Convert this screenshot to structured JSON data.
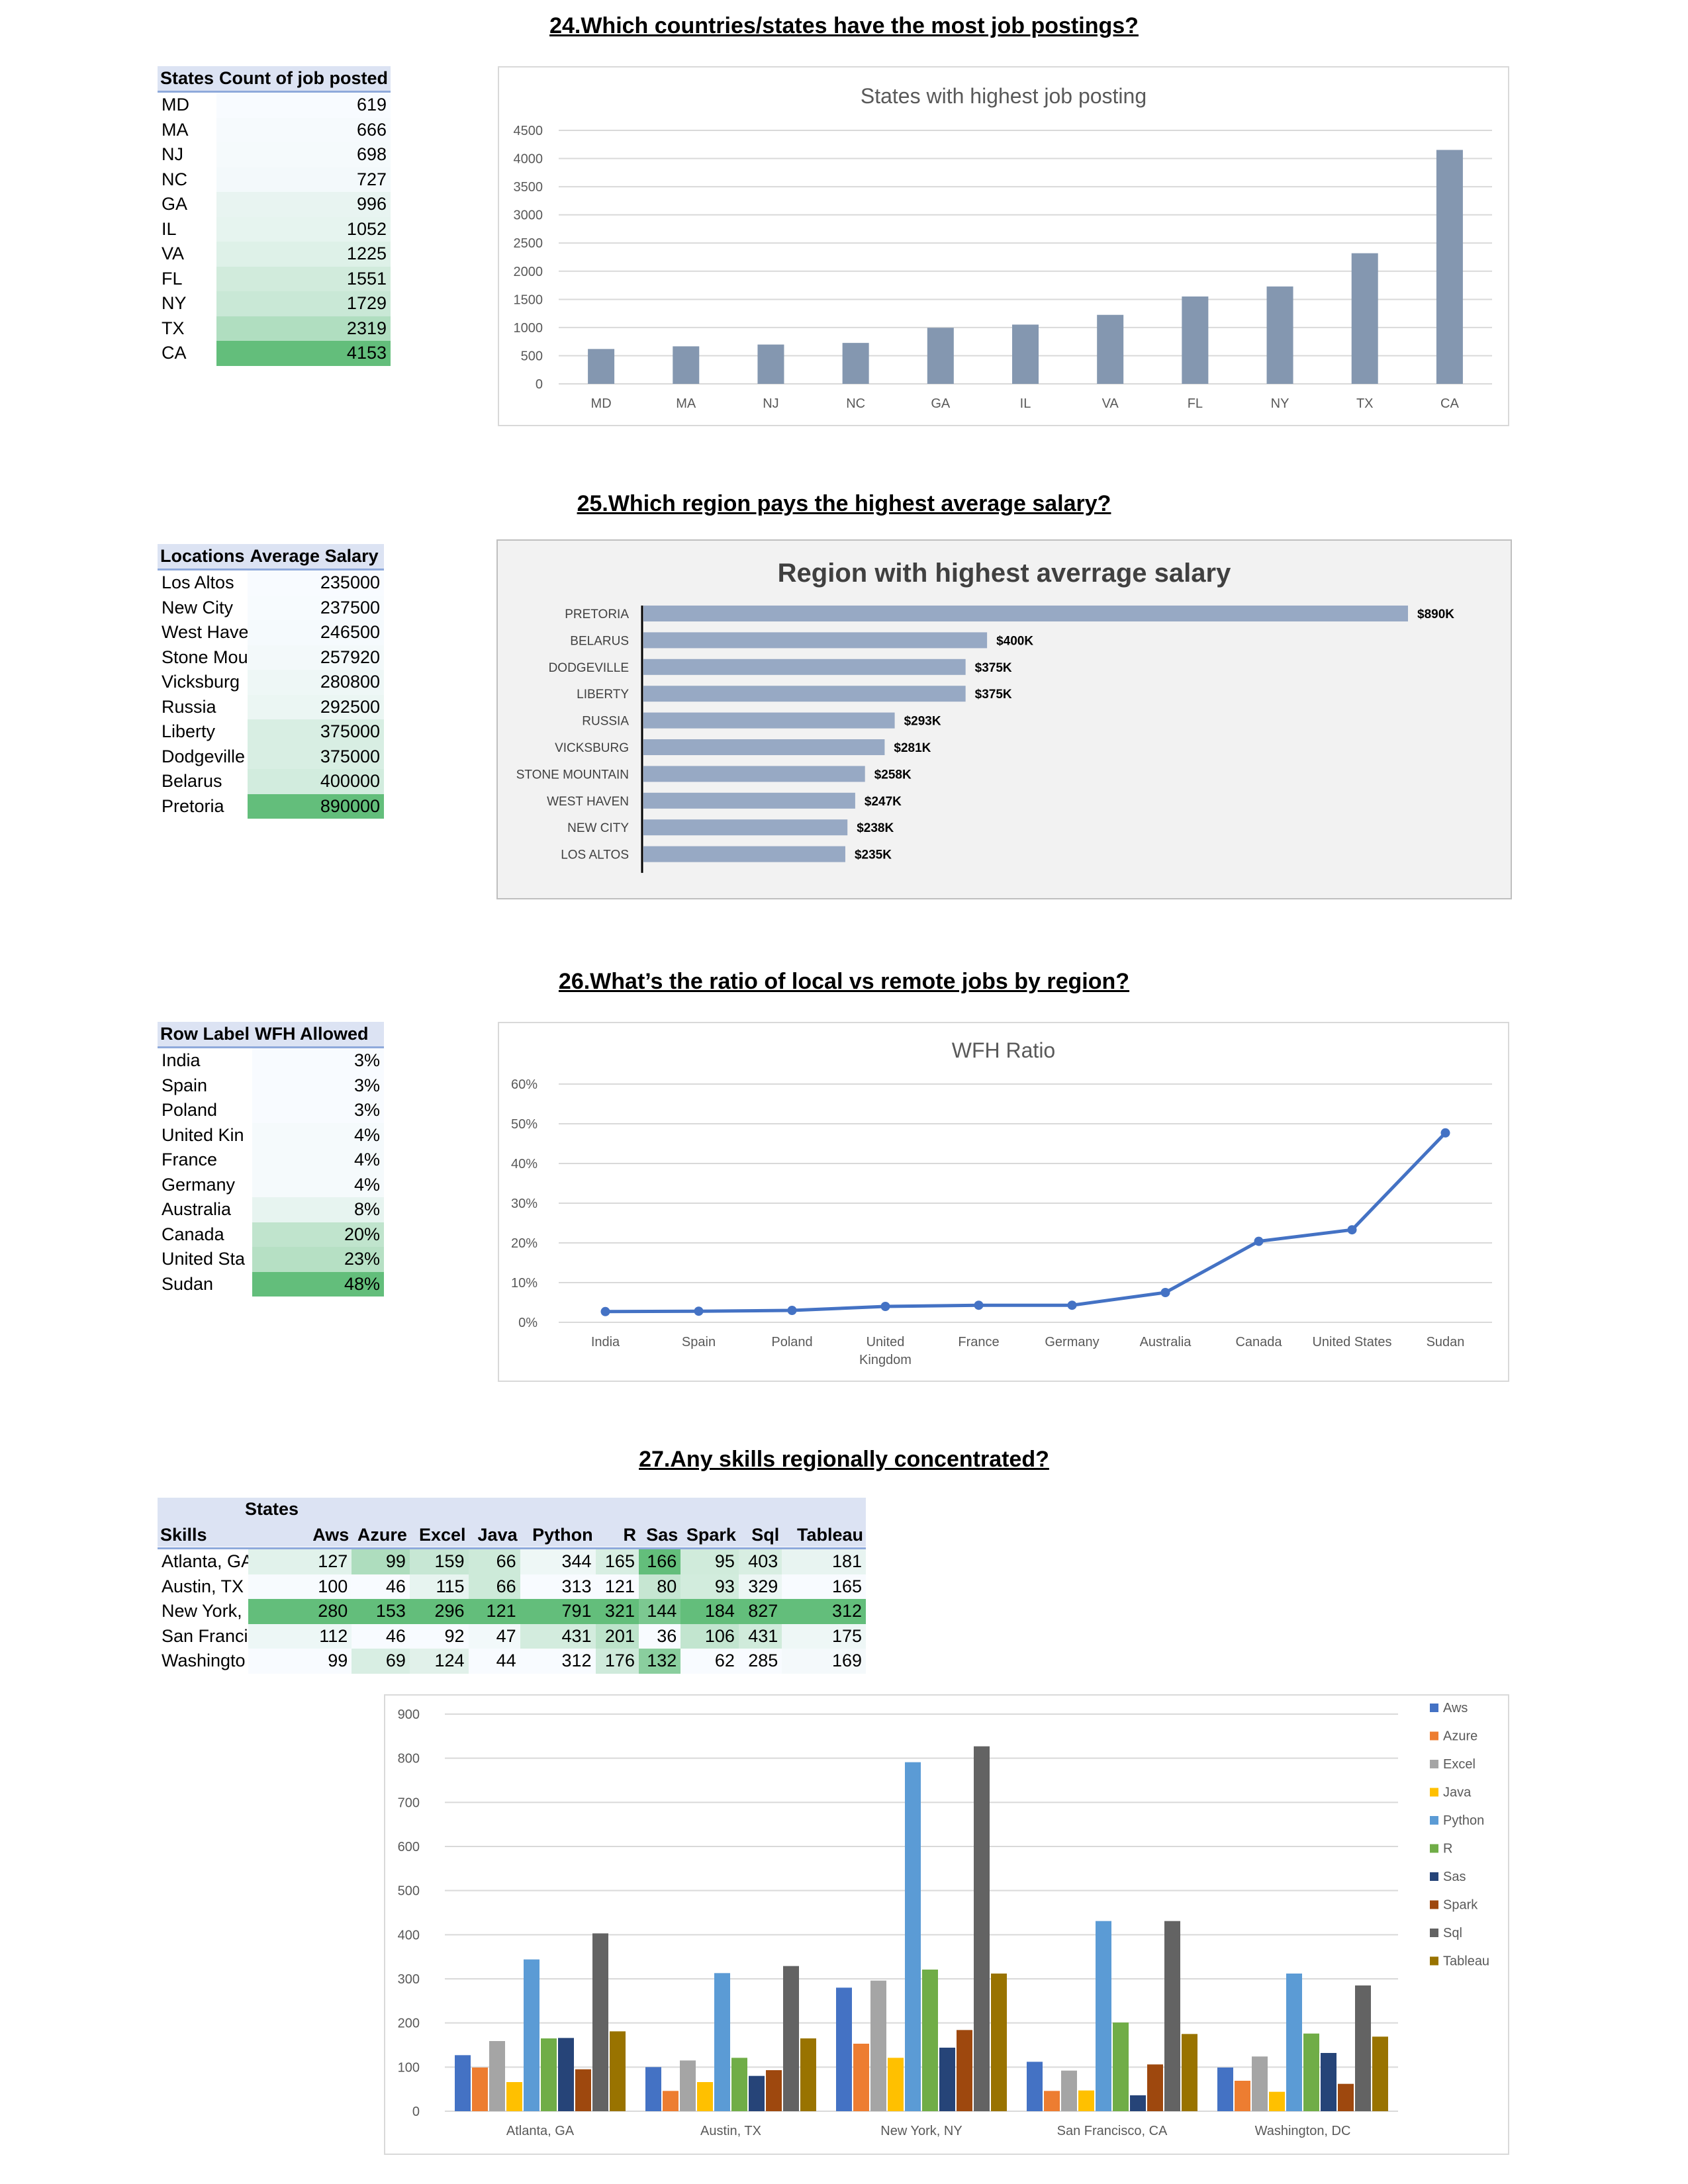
{
  "q24": {
    "title": "24.Which countries/states have the most job postings?",
    "table": {
      "headers": [
        "States",
        "Count of job posted"
      ],
      "rows": [
        [
          "MD",
          "619"
        ],
        [
          "MA",
          "666"
        ],
        [
          "NJ",
          "698"
        ],
        [
          "NC",
          "727"
        ],
        [
          "GA",
          "996"
        ],
        [
          "IL",
          "1052"
        ],
        [
          "VA",
          "1225"
        ],
        [
          "FL",
          "1551"
        ],
        [
          "NY",
          "1729"
        ],
        [
          "TX",
          "2319"
        ],
        [
          "CA",
          "4153"
        ]
      ]
    }
  },
  "q25": {
    "title": "25.Which region pays the highest average salary?",
    "table": {
      "headers": [
        "Locations",
        "Average Salary"
      ],
      "rows": [
        [
          "Los Altos",
          "235000"
        ],
        [
          "New City",
          "237500"
        ],
        [
          "West Have",
          "246500"
        ],
        [
          "Stone Mou",
          "257920"
        ],
        [
          "Vicksburg",
          "280800"
        ],
        [
          "Russia",
          "292500"
        ],
        [
          "Liberty",
          "375000"
        ],
        [
          "Dodgeville",
          "375000"
        ],
        [
          "Belarus",
          "400000"
        ],
        [
          "Pretoria",
          "890000"
        ]
      ]
    }
  },
  "q26": {
    "title": "26.What’s the ratio of local vs remote jobs by region?",
    "table": {
      "headers": [
        "Row Label",
        "WFH Allowed"
      ],
      "rows": [
        [
          "India",
          "3%"
        ],
        [
          "Spain",
          "3%"
        ],
        [
          "Poland",
          "3%"
        ],
        [
          "United Kin",
          "4%"
        ],
        [
          "France",
          "4%"
        ],
        [
          "Germany",
          "4%"
        ],
        [
          "Australia",
          "8%"
        ],
        [
          "Canada",
          "20%"
        ],
        [
          "United Sta",
          "23%"
        ],
        [
          "Sudan",
          "48%"
        ]
      ]
    }
  },
  "q27": {
    "title": "27.Any skills regionally concentrated?",
    "table": {
      "corner_top": "States",
      "headers": [
        "Skills",
        "Aws",
        "Azure",
        "Excel",
        "Java",
        "Python",
        "R",
        "Sas",
        "Spark",
        "Sql",
        "Tableau"
      ],
      "rows": [
        [
          "Atlanta, GA",
          "127",
          "99",
          "159",
          "66",
          "344",
          "165",
          "166",
          "95",
          "403",
          "181"
        ],
        [
          "Austin, TX",
          "100",
          "46",
          "115",
          "66",
          "313",
          "121",
          "80",
          "93",
          "329",
          "165"
        ],
        [
          "New York,",
          "280",
          "153",
          "296",
          "121",
          "791",
          "321",
          "144",
          "184",
          "827",
          "312"
        ],
        [
          "San Franci",
          "112",
          "46",
          "92",
          "47",
          "431",
          "201",
          "36",
          "106",
          "431",
          "175"
        ],
        [
          "Washingto",
          "99",
          "69",
          "124",
          "44",
          "312",
          "176",
          "132",
          "62",
          "285",
          "169"
        ]
      ]
    }
  },
  "chart_data": [
    {
      "type": "bar",
      "title": "States with highest job posting",
      "categories": [
        "MD",
        "MA",
        "NJ",
        "NC",
        "GA",
        "IL",
        "VA",
        "FL",
        "NY",
        "TX",
        "CA"
      ],
      "values": [
        619,
        666,
        698,
        727,
        996,
        1052,
        1225,
        1551,
        1729,
        2319,
        4153
      ],
      "ylim": [
        0,
        4500
      ],
      "yticks": [
        "0",
        "500",
        "1000",
        "1500",
        "2000",
        "2500",
        "3000",
        "3500",
        "4000",
        "4500"
      ],
      "grid": true,
      "color": "#8497b0"
    },
    {
      "type": "bar",
      "orientation": "horizontal",
      "title": "Region with highest averrage salary",
      "categories": [
        "PRETORIA",
        "BELARUS",
        "DODGEVILLE",
        "LIBERTY",
        "RUSSIA",
        "VICKSBURG",
        "STONE MOUNTAIN",
        "WEST HAVEN",
        "NEW CITY",
        "LOS ALTOS"
      ],
      "values": [
        890000,
        400000,
        375000,
        375000,
        292500,
        280800,
        257920,
        246500,
        237500,
        235000
      ],
      "data_labels": [
        "$890K",
        "$400K",
        "$375K",
        "$375K",
        "$293K",
        "$281K",
        "$258K",
        "$247K",
        "$238K",
        "$235K"
      ],
      "color": "#97a9c4"
    },
    {
      "type": "line",
      "title": "WFH Ratio",
      "categories": [
        "India",
        "Spain",
        "Poland",
        "United Kingdom",
        "France",
        "Germany",
        "Australia",
        "Canada",
        "United States",
        "Sudan"
      ],
      "values": [
        0.027,
        0.028,
        0.03,
        0.04,
        0.043,
        0.043,
        0.075,
        0.204,
        0.233,
        0.477
      ],
      "ylim": [
        0,
        0.6
      ],
      "yticks": [
        "0%",
        "10%",
        "20%",
        "30%",
        "40%",
        "50%",
        "60%"
      ],
      "grid": true,
      "color": "#4472c4"
    },
    {
      "type": "bar",
      "categories": [
        "Atlanta, GA",
        "Austin, TX",
        "New York, NY",
        "San Francisco, CA",
        "Washington, DC"
      ],
      "series": [
        {
          "name": "Aws",
          "values": [
            127,
            100,
            280,
            112,
            99
          ],
          "color": "#4472c4"
        },
        {
          "name": "Azure",
          "values": [
            99,
            46,
            153,
            46,
            69
          ],
          "color": "#ed7d31"
        },
        {
          "name": "Excel",
          "values": [
            159,
            115,
            296,
            92,
            124
          ],
          "color": "#a5a5a5"
        },
        {
          "name": "Java",
          "values": [
            66,
            66,
            121,
            47,
            44
          ],
          "color": "#ffc000"
        },
        {
          "name": "Python",
          "values": [
            344,
            313,
            791,
            431,
            312
          ],
          "color": "#5b9bd5"
        },
        {
          "name": "R",
          "values": [
            165,
            121,
            321,
            201,
            176
          ],
          "color": "#70ad47"
        },
        {
          "name": "Sas",
          "values": [
            166,
            80,
            144,
            36,
            132
          ],
          "color": "#264478"
        },
        {
          "name": "Spark",
          "values": [
            95,
            93,
            184,
            106,
            62
          ],
          "color": "#9e480e"
        },
        {
          "name": "Sql",
          "values": [
            403,
            329,
            827,
            431,
            285
          ],
          "color": "#636363"
        },
        {
          "name": "Tableau",
          "values": [
            181,
            165,
            312,
            175,
            169
          ],
          "color": "#997300"
        }
      ],
      "ylim": [
        0,
        900
      ],
      "yticks": [
        "0",
        "100",
        "200",
        "300",
        "400",
        "500",
        "600",
        "700",
        "800",
        "900"
      ],
      "legend": "right",
      "grid": true
    }
  ]
}
